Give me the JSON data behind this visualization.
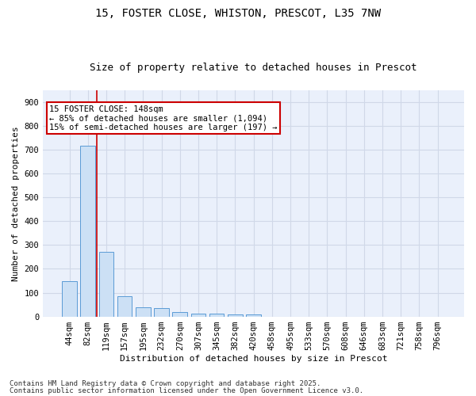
{
  "title_line1": "15, FOSTER CLOSE, WHISTON, PRESCOT, L35 7NW",
  "title_line2": "Size of property relative to detached houses in Prescot",
  "xlabel": "Distribution of detached houses by size in Prescot",
  "ylabel": "Number of detached properties",
  "categories": [
    "44sqm",
    "82sqm",
    "119sqm",
    "157sqm",
    "195sqm",
    "232sqm",
    "270sqm",
    "307sqm",
    "345sqm",
    "382sqm",
    "420sqm",
    "458sqm",
    "495sqm",
    "533sqm",
    "570sqm",
    "608sqm",
    "646sqm",
    "683sqm",
    "721sqm",
    "758sqm",
    "796sqm"
  ],
  "values": [
    148,
    718,
    272,
    84,
    40,
    35,
    20,
    12,
    12,
    8,
    8,
    0,
    0,
    0,
    0,
    0,
    0,
    0,
    0,
    0,
    0
  ],
  "bar_color": "#cce0f5",
  "bar_edge_color": "#5b9bd5",
  "grid_color": "#d0d8e8",
  "background_color": "#eaf0fb",
  "annotation_box_text": "15 FOSTER CLOSE: 148sqm\n← 85% of detached houses are smaller (1,094)\n15% of semi-detached houses are larger (197) →",
  "annotation_box_color": "#ffffff",
  "annotation_box_edge_color": "#cc0000",
  "vline_x_index": 1.5,
  "vline_color": "#cc0000",
  "ylim": [
    0,
    950
  ],
  "yticks": [
    0,
    100,
    200,
    300,
    400,
    500,
    600,
    700,
    800,
    900
  ],
  "footer_line1": "Contains HM Land Registry data © Crown copyright and database right 2025.",
  "footer_line2": "Contains public sector information licensed under the Open Government Licence v3.0.",
  "title_fontsize": 10,
  "subtitle_fontsize": 9,
  "axis_label_fontsize": 8,
  "tick_fontsize": 7.5,
  "annotation_fontsize": 7.5,
  "footer_fontsize": 6.5
}
